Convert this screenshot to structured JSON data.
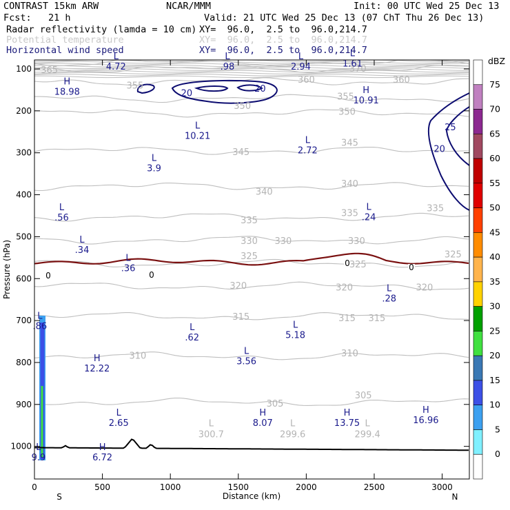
{
  "header": {
    "model": "CONTRAST 15km ARW",
    "center": "NCAR/MMM",
    "init": "Init: 00 UTC Wed 25 Dec 13",
    "fcst": "Fcst:   21 h",
    "valid": "Valid: 21 UTC Wed 25 Dec 13 (07 ChT Thu 26 Dec 13)",
    "fields": [
      {
        "name": "Radar reflectivity (lamda = 10 cm)",
        "xy": "XY=  96.0,  2.5 to  96.0,214.7"
      },
      {
        "name": "Potential temperature",
        "xy": "XY=  96.0,  2.5 to  96.0,214.7"
      },
      {
        "name": "Horizontal wind speed",
        "xy": "XY=  96.0,  2.5 to  96.0,214.7"
      }
    ]
  },
  "chart_data": {
    "type": "cross-section contour",
    "xlabel": "Distance (km)",
    "ylabel": "Pressure (hPa)",
    "xlim": [
      0,
      3200
    ],
    "ylim": [
      1050,
      60
    ],
    "xticks": [
      0,
      500,
      1000,
      1500,
      2000,
      2500,
      3000
    ],
    "yticks": [
      100,
      200,
      300,
      400,
      500,
      600,
      700,
      800,
      900,
      1000
    ],
    "endpoints": {
      "left": "S",
      "right": "N"
    },
    "theta_contours": [
      {
        "value": 305,
        "p": 895,
        "labels": [
          {
            "x": 1770,
            "p": 897,
            "text": "305"
          },
          {
            "x": 2420,
            "p": 877,
            "text": "305"
          }
        ]
      },
      {
        "value": 310,
        "p": 785,
        "labels": [
          {
            "x": 760,
            "p": 783,
            "text": "310"
          },
          {
            "x": 2320,
            "p": 777,
            "text": "310"
          }
        ]
      },
      {
        "value": 315,
        "p": 690,
        "labels": [
          {
            "x": 1520,
            "p": 690,
            "text": "315"
          },
          {
            "x": 2300,
            "p": 693,
            "text": "315"
          },
          {
            "x": 2520,
            "p": 693,
            "text": "315"
          }
        ]
      },
      {
        "value": 320,
        "p": 618,
        "labels": [
          {
            "x": 1500,
            "p": 616,
            "text": "320"
          },
          {
            "x": 2280,
            "p": 620,
            "text": "320"
          },
          {
            "x": 2870,
            "p": 620,
            "text": "320"
          }
        ]
      },
      {
        "value": 325,
        "p": 564,
        "labels": [
          {
            "x": 1580,
            "p": 545,
            "text": "325"
          },
          {
            "x": 2380,
            "p": 565,
            "text": "325"
          },
          {
            "x": 3080,
            "p": 541,
            "text": "325"
          }
        ]
      },
      {
        "value": 330,
        "p": 508,
        "labels": [
          {
            "x": 1580,
            "p": 509,
            "text": "330"
          },
          {
            "x": 1830,
            "p": 509,
            "text": "330"
          },
          {
            "x": 2370,
            "p": 509,
            "text": "330"
          }
        ]
      },
      {
        "value": 335,
        "p": 453,
        "labels": [
          {
            "x": 1580,
            "p": 460,
            "text": "335"
          },
          {
            "x": 2320,
            "p": 443,
            "text": "335"
          },
          {
            "x": 2950,
            "p": 431,
            "text": "335"
          }
        ]
      },
      {
        "value": 340,
        "p": 380,
        "labels": [
          {
            "x": 1690,
            "p": 392,
            "text": "340"
          },
          {
            "x": 2320,
            "p": 373,
            "text": "340"
          }
        ]
      },
      {
        "value": 345,
        "p": 295,
        "labels": [
          {
            "x": 1520,
            "p": 297,
            "text": "345"
          },
          {
            "x": 2320,
            "p": 275,
            "text": "345"
          }
        ]
      },
      {
        "value": 350,
        "p": 205,
        "labels": [
          {
            "x": 1530,
            "p": 187,
            "text": "350"
          },
          {
            "x": 2300,
            "p": 201,
            "text": "350"
          }
        ]
      },
      {
        "value": 355,
        "p": 170,
        "labels": [
          {
            "x": 740,
            "p": 139,
            "text": "355"
          },
          {
            "x": 2290,
            "p": 165,
            "text": "355"
          }
        ]
      },
      {
        "value": 360,
        "p": 130,
        "labels": [
          {
            "x": 2000,
            "p": 125,
            "text": "360"
          },
          {
            "x": 2700,
            "p": 125,
            "text": "360"
          }
        ]
      },
      {
        "value": 365,
        "p": 100,
        "labels": [
          {
            "x": 110,
            "p": 102,
            "text": "365"
          }
        ]
      },
      {
        "value": 370,
        "p": 85,
        "labels": [
          {
            "x": 2380,
            "p": 98,
            "text": "370"
          }
        ]
      }
    ],
    "theta_lows": [
      {
        "x": 1300,
        "p": 965,
        "letter": "L",
        "text": "300.7"
      },
      {
        "x": 1900,
        "p": 965,
        "letter": "L",
        "text": "299.6"
      },
      {
        "x": 2450,
        "p": 965,
        "letter": "L",
        "text": "299.4"
      }
    ],
    "wind_speed_contours": [
      {
        "value": 20,
        "labels": [
          {
            "x": 1120,
            "p": 157,
            "text": "20"
          },
          {
            "x": 1660,
            "p": 146,
            "text": "20"
          },
          {
            "x": 2980,
            "p": 290,
            "text": "20"
          }
        ]
      },
      {
        "value": 25,
        "labels": [
          {
            "x": 3060,
            "p": 238,
            "text": "25"
          }
        ]
      }
    ],
    "extrema": [
      {
        "kind": "L",
        "x": 600,
        "p": 85,
        "value": "4.72"
      },
      {
        "kind": "L",
        "x": 1420,
        "p": 85,
        "value": ".98"
      },
      {
        "kind": "L",
        "x": 1960,
        "p": 85,
        "value": "2.94"
      },
      {
        "kind": "L",
        "x": 2340,
        "p": 78,
        "value": "1.61"
      },
      {
        "kind": "H",
        "x": 240,
        "p": 145,
        "value": "18.98"
      },
      {
        "kind": "H",
        "x": 2440,
        "p": 166,
        "value": "10.91"
      },
      {
        "kind": "L",
        "x": 1200,
        "p": 250,
        "value": "10.21"
      },
      {
        "kind": "L",
        "x": 2010,
        "p": 285,
        "value": "2.72"
      },
      {
        "kind": "L",
        "x": 880,
        "p": 328,
        "value": "3.9"
      },
      {
        "kind": "L",
        "x": 200,
        "p": 445,
        "value": ".56"
      },
      {
        "kind": "L",
        "x": 2460,
        "p": 444,
        "value": ".24"
      },
      {
        "kind": "L",
        "x": 350,
        "p": 522,
        "value": ".34"
      },
      {
        "kind": "L",
        "x": 690,
        "p": 566,
        "value": ".36"
      },
      {
        "kind": "L",
        "x": 2610,
        "p": 638,
        "value": ".28"
      },
      {
        "kind": "L",
        "x": 40,
        "p": 704,
        "value": ".86"
      },
      {
        "kind": "L",
        "x": 1160,
        "p": 731,
        "value": ".62"
      },
      {
        "kind": "L",
        "x": 1920,
        "p": 725,
        "value": "5.18"
      },
      {
        "kind": "L",
        "x": 1560,
        "p": 788,
        "value": "3.56"
      },
      {
        "kind": "H",
        "x": 460,
        "p": 805,
        "value": "12.22"
      },
      {
        "kind": "L",
        "x": 620,
        "p": 935,
        "value": "2.65"
      },
      {
        "kind": "H",
        "x": 1680,
        "p": 935,
        "value": "8.07"
      },
      {
        "kind": "H",
        "x": 2300,
        "p": 935,
        "value": "13.75"
      },
      {
        "kind": "H",
        "x": 2880,
        "p": 928,
        "value": "16.96"
      },
      {
        "kind": "H",
        "x": 500,
        "p": 1017,
        "value": "6.72"
      },
      {
        "kind": "L",
        "x": 30,
        "p": 1017,
        "value": "9.9"
      }
    ],
    "reflectivity_zero_contour": {
      "value": 0,
      "p": 560,
      "labels": [
        "0",
        "0",
        "0",
        "0"
      ]
    },
    "colorbar": {
      "title": "dBZ",
      "levels": [
        75,
        70,
        65,
        60,
        55,
        50,
        45,
        40,
        35,
        30,
        25,
        20,
        15,
        10,
        5,
        0
      ],
      "colors": [
        "#ffffff",
        "#c080c0",
        "#8c2890",
        "#a04860",
        "#c00000",
        "#e00000",
        "#ff4000",
        "#ff8c00",
        "#ffb44c",
        "#ffd200",
        "#00a000",
        "#40e040",
        "#3a78b4",
        "#3c50e6",
        "#3ca0f0",
        "#80f0ff",
        "#ffffff"
      ]
    }
  }
}
